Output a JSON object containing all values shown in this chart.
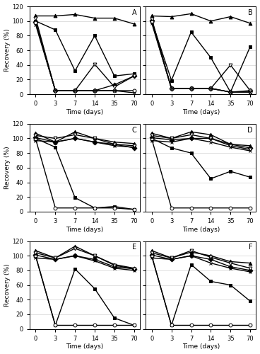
{
  "x_positions": [
    0,
    1,
    2,
    3,
    4,
    5
  ],
  "x_labels": [
    "0",
    "3",
    "7",
    "14",
    "35",
    "70"
  ],
  "panels": {
    "A": {
      "label": "A",
      "series": [
        {
          "marker": "^",
          "filled": true,
          "data": [
            107,
            107,
            109,
            104,
            104,
            96
          ]
        },
        {
          "marker": "s",
          "filled": true,
          "data": [
            100,
            88,
            32,
            80,
            25,
            28
          ]
        },
        {
          "marker": "D",
          "filled": true,
          "data": [
            99,
            5,
            5,
            5,
            13,
            25
          ]
        },
        {
          "marker": "v",
          "filled": false,
          "data": [
            104,
            5,
            5,
            41,
            10,
            25
          ]
        },
        {
          "marker": "o",
          "filled": false,
          "data": [
            98,
            5,
            5,
            5,
            5,
            5
          ]
        },
        {
          "marker": "x",
          "filled": false,
          "data": [
            95,
            5,
            5,
            5,
            5,
            2
          ]
        }
      ]
    },
    "B": {
      "label": "B",
      "series": [
        {
          "marker": "^",
          "filled": true,
          "data": [
            107,
            106,
            110,
            100,
            106,
            97
          ]
        },
        {
          "marker": "s",
          "filled": true,
          "data": [
            100,
            19,
            85,
            50,
            3,
            65
          ]
        },
        {
          "marker": "D",
          "filled": true,
          "data": [
            101,
            8,
            8,
            8,
            3,
            5
          ]
        },
        {
          "marker": "v",
          "filled": false,
          "data": [
            103,
            8,
            8,
            8,
            40,
            5
          ]
        },
        {
          "marker": "o",
          "filled": false,
          "data": [
            99,
            8,
            8,
            8,
            3,
            3
          ]
        },
        {
          "marker": "x",
          "filled": false,
          "data": [
            97,
            8,
            8,
            8,
            3,
            3
          ]
        }
      ]
    },
    "C": {
      "label": "C",
      "series": [
        {
          "marker": "^",
          "filled": true,
          "data": [
            107,
            95,
            109,
            100,
            95,
            93
          ]
        },
        {
          "marker": "s",
          "filled": true,
          "data": [
            100,
            88,
            19,
            5,
            7,
            3
          ]
        },
        {
          "marker": "D",
          "filled": true,
          "data": [
            101,
            95,
            100,
            95,
            92,
            87
          ]
        },
        {
          "marker": "v",
          "filled": false,
          "data": [
            104,
            100,
            105,
            100,
            92,
            90
          ]
        },
        {
          "marker": "o",
          "filled": false,
          "data": [
            99,
            5,
            5,
            5,
            5,
            3
          ]
        },
        {
          "marker": "x",
          "filled": false,
          "data": [
            97,
            95,
            100,
            95,
            90,
            88
          ]
        }
      ]
    },
    "D": {
      "label": "D",
      "series": [
        {
          "marker": "^",
          "filled": true,
          "data": [
            107,
            100,
            109,
            105,
            92,
            90
          ]
        },
        {
          "marker": "s",
          "filled": true,
          "data": [
            100,
            87,
            80,
            45,
            55,
            47
          ]
        },
        {
          "marker": "D",
          "filled": true,
          "data": [
            101,
            98,
            100,
            100,
            92,
            87
          ]
        },
        {
          "marker": "v",
          "filled": false,
          "data": [
            104,
            100,
            105,
            100,
            90,
            85
          ]
        },
        {
          "marker": "o",
          "filled": false,
          "data": [
            99,
            5,
            5,
            5,
            5,
            5
          ]
        },
        {
          "marker": "x",
          "filled": false,
          "data": [
            97,
            95,
            100,
            95,
            88,
            83
          ]
        }
      ]
    },
    "E": {
      "label": "E",
      "series": [
        {
          "marker": "^",
          "filled": true,
          "data": [
            107,
            97,
            113,
            100,
            88,
            83
          ]
        },
        {
          "marker": "s",
          "filled": true,
          "data": [
            100,
            5,
            82,
            55,
            15,
            5
          ]
        },
        {
          "marker": "D",
          "filled": true,
          "data": [
            101,
            95,
            100,
            95,
            85,
            82
          ]
        },
        {
          "marker": "v",
          "filled": false,
          "data": [
            104,
            97,
            110,
            100,
            87,
            82
          ]
        },
        {
          "marker": "o",
          "filled": false,
          "data": [
            99,
            5,
            5,
            5,
            5,
            5
          ]
        },
        {
          "marker": "x",
          "filled": false,
          "data": [
            97,
            95,
            100,
            93,
            83,
            80
          ]
        }
      ]
    },
    "F": {
      "label": "F",
      "series": [
        {
          "marker": "^",
          "filled": true,
          "data": [
            107,
            97,
            105,
            100,
            92,
            90
          ]
        },
        {
          "marker": "s",
          "filled": true,
          "data": [
            100,
            5,
            88,
            65,
            60,
            38
          ]
        },
        {
          "marker": "D",
          "filled": true,
          "data": [
            101,
            95,
            100,
            95,
            85,
            80
          ]
        },
        {
          "marker": "v",
          "filled": false,
          "data": [
            104,
            97,
            107,
            98,
            90,
            83
          ]
        },
        {
          "marker": "o",
          "filled": false,
          "data": [
            99,
            5,
            5,
            5,
            5,
            5
          ]
        },
        {
          "marker": "x",
          "filled": false,
          "data": [
            97,
            95,
            100,
            90,
            83,
            78
          ]
        }
      ]
    }
  },
  "xlim": [
    -0.3,
    5.3
  ],
  "ylim": [
    0,
    120
  ],
  "yticks": [
    0,
    20,
    40,
    60,
    80,
    100,
    120
  ],
  "xlabel": "Time (days)",
  "ylabel": "Recovery (%)",
  "panel_order": [
    "A",
    "B",
    "C",
    "D",
    "E",
    "F"
  ],
  "color": "black",
  "linewidth": 1.0,
  "markersize": 3.5
}
